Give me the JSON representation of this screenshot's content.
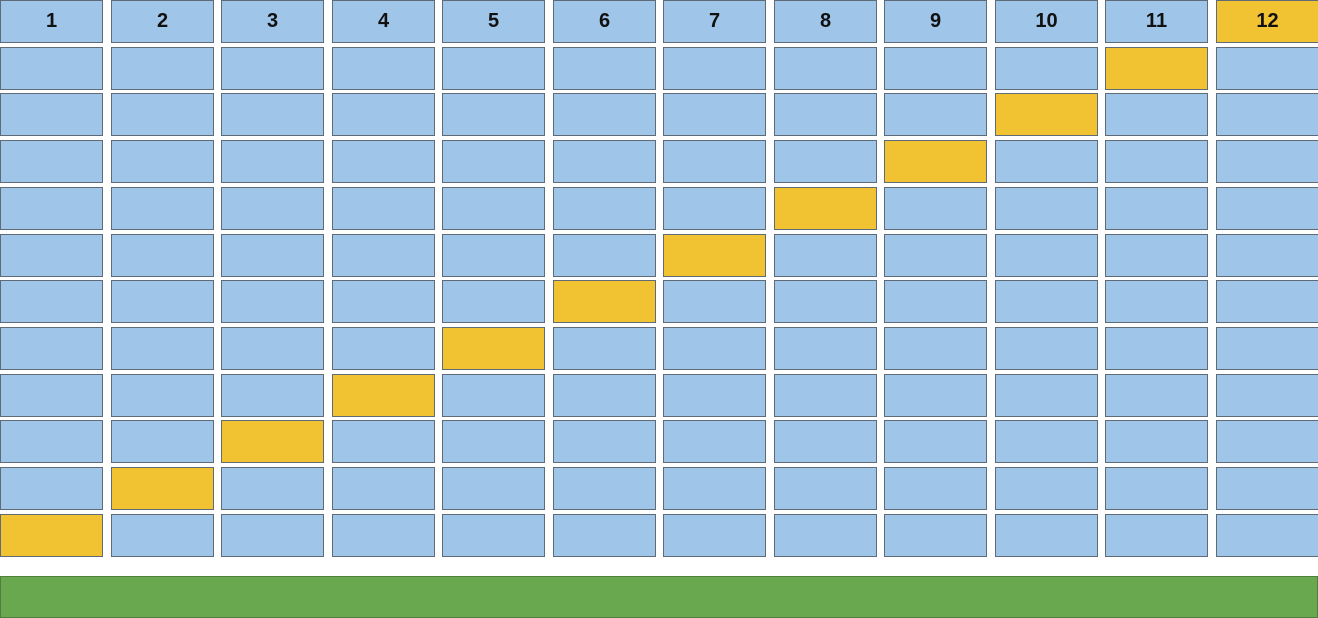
{
  "columns": [
    "1",
    "2",
    "3",
    "4",
    "5",
    "6",
    "7",
    "8",
    "9",
    "10",
    "11",
    "12"
  ],
  "rows": 11,
  "highlighted_column": 12,
  "highlight_cells": [
    {
      "row": 1,
      "col": 11
    },
    {
      "row": 2,
      "col": 10
    },
    {
      "row": 3,
      "col": 9
    },
    {
      "row": 4,
      "col": 8
    },
    {
      "row": 5,
      "col": 7
    },
    {
      "row": 6,
      "col": 6
    },
    {
      "row": 7,
      "col": 5
    },
    {
      "row": 8,
      "col": 4
    },
    {
      "row": 9,
      "col": 3
    },
    {
      "row": 10,
      "col": 2
    },
    {
      "row": 11,
      "col": 1
    }
  ],
  "colors": {
    "cell": "#9fc5e8",
    "highlight": "#f1c232",
    "base_bar": "#6aa84f"
  }
}
